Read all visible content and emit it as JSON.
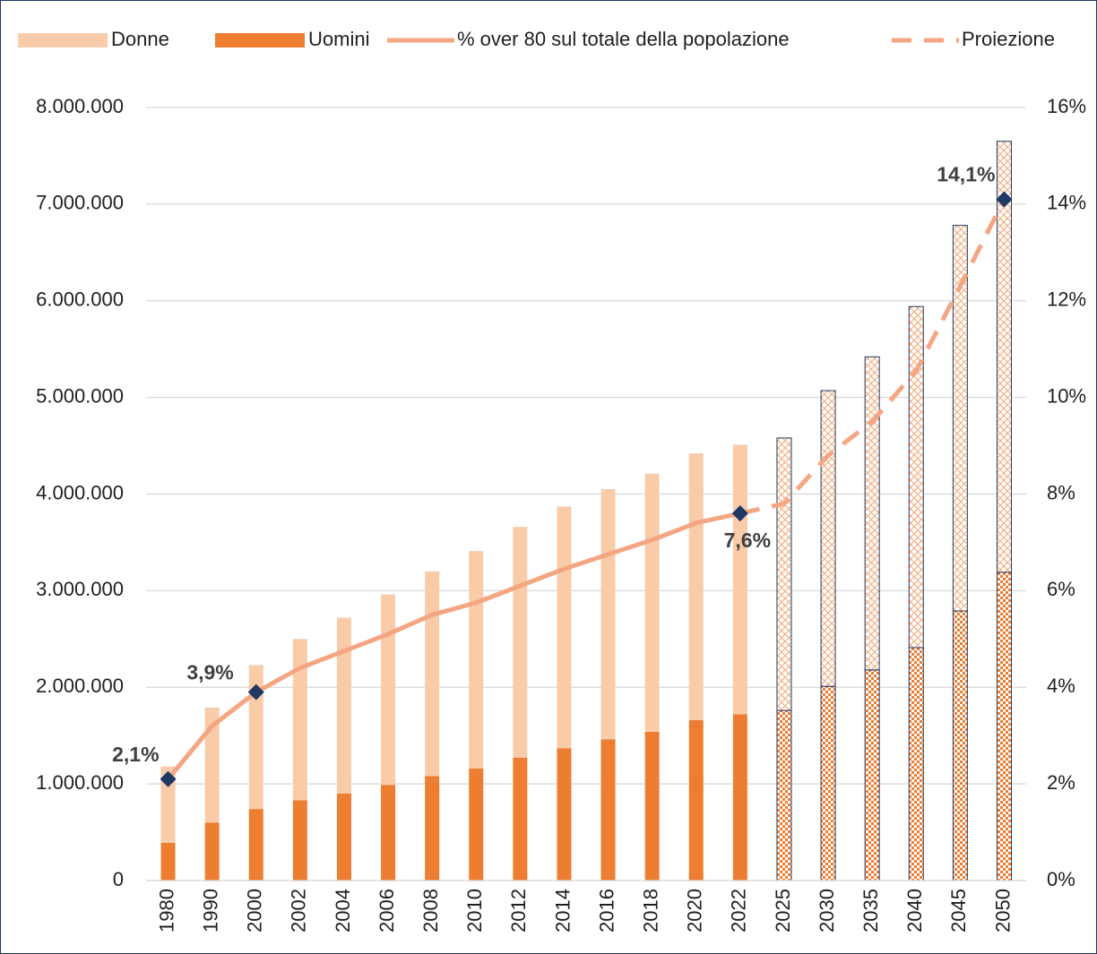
{
  "chart_data": {
    "type": "bar_line",
    "categories": [
      "1980",
      "1990",
      "2000",
      "2002",
      "2004",
      "2006",
      "2008",
      "2010",
      "2012",
      "2014",
      "2016",
      "2018",
      "2020",
      "2022",
      "2025",
      "2030",
      "2035",
      "2040",
      "2045",
      "2050"
    ],
    "series": [
      {
        "name": "Donne",
        "type": "bar",
        "color": "#f8cba9",
        "values": [
          790000,
          1190000,
          1490000,
          1670000,
          1820000,
          1970000,
          2120000,
          2250000,
          2390000,
          2500000,
          2590000,
          2670000,
          2760000,
          2790000,
          2820000,
          3060000,
          3240000,
          3530000,
          3990000,
          4460000
        ]
      },
      {
        "name": "Uomini",
        "type": "bar",
        "color": "#ed7d31",
        "values": [
          390000,
          600000,
          740000,
          830000,
          900000,
          990000,
          1080000,
          1160000,
          1270000,
          1370000,
          1460000,
          1540000,
          1660000,
          1720000,
          1760000,
          2010000,
          2180000,
          2410000,
          2790000,
          3190000
        ]
      },
      {
        "name": "% over 80 sul totale della popolazione",
        "type": "line",
        "axis": "y2",
        "color": "#f4a582",
        "values": [
          2.1,
          3.2,
          3.9,
          4.4,
          4.75,
          5.1,
          5.5,
          5.75,
          6.1,
          6.45,
          6.75,
          7.05,
          7.4,
          7.6,
          null,
          null,
          null,
          null,
          null,
          null
        ],
        "value_labels": [
          "2,1%",
          null,
          "3,9%",
          null,
          null,
          null,
          null,
          null,
          null,
          null,
          null,
          null,
          null,
          "7,6%",
          null,
          null,
          null,
          null,
          null,
          null
        ]
      },
      {
        "name": "Proiezione",
        "type": "line",
        "dashed": true,
        "axis": "y2",
        "color": "#f4a582",
        "values": [
          null,
          null,
          null,
          null,
          null,
          null,
          null,
          null,
          null,
          null,
          null,
          null,
          null,
          7.6,
          7.8,
          8.8,
          9.5,
          10.55,
          12.3,
          14.1
        ],
        "value_labels": [
          null,
          null,
          null,
          null,
          null,
          null,
          null,
          null,
          null,
          null,
          null,
          null,
          null,
          null,
          null,
          null,
          null,
          null,
          null,
          "14,1%"
        ]
      }
    ],
    "marker_color": "#1f3864",
    "ylim": [
      0,
      8000000
    ],
    "yticks": [
      0,
      {
        "value": 1000000,
        "label": "1.000.000"
      },
      {
        "value": 2000000,
        "label": "2.000.000"
      },
      {
        "value": 3000000,
        "label": "3.000.000"
      },
      {
        "value": 4000000,
        "label": "4.000.000"
      },
      {
        "value": 5000000,
        "label": "5.000.000"
      },
      {
        "value": 6000000,
        "label": "6.000.000"
      },
      {
        "value": 7000000,
        "label": "7.000.000"
      },
      {
        "value": 8000000,
        "label": "8.000.000"
      }
    ],
    "y2lim": [
      0,
      16
    ],
    "y2ticks": [
      {
        "value": 0,
        "label": "0%"
      },
      {
        "value": 2,
        "label": "2%"
      },
      {
        "value": 4,
        "label": "4%"
      },
      {
        "value": 6,
        "label": "6%"
      },
      {
        "value": 8,
        "label": "8%"
      },
      {
        "value": 10,
        "label": "10%"
      },
      {
        "value": 12,
        "label": "12%"
      },
      {
        "value": 14,
        "label": "14%"
      },
      {
        "value": 16,
        "label": "16%"
      }
    ],
    "grid": true,
    "legend": "top"
  }
}
